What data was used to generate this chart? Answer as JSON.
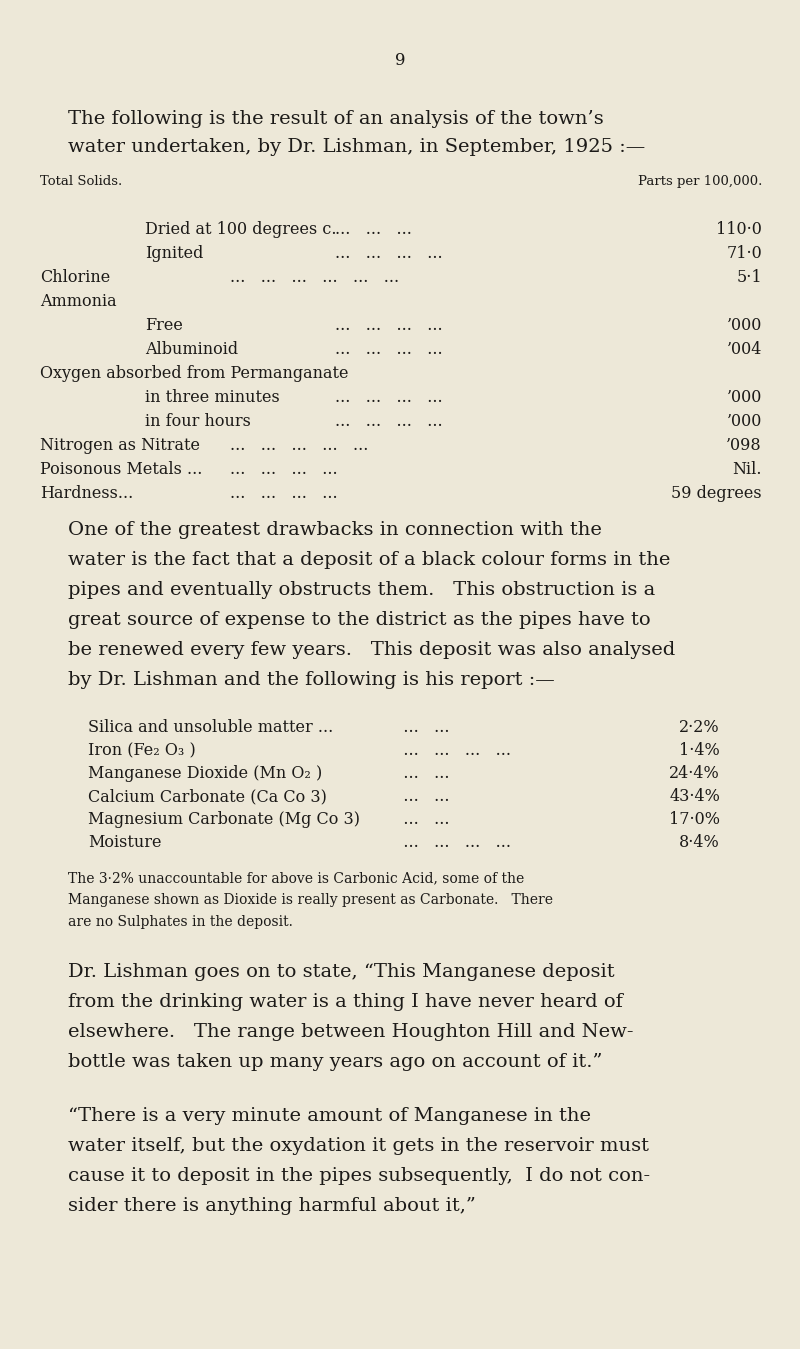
{
  "bg_color": "#EDE8D8",
  "text_color": "#1c1a18",
  "page_number": "9",
  "intro_line1": "The following is the result of an analysis of the town’s",
  "intro_line2": "water undertaken, by Dr. Lishman, in September, 1925 :—",
  "table_header_left": "Total Solids.",
  "table_header_right": "Parts per 100,000.",
  "table_rows": [
    {
      "indent": 1,
      "label": "Dried at 100 degrees c.",
      "dots": "...   ...   ...",
      "value": "110·0"
    },
    {
      "indent": 1,
      "label": "Ignited",
      "dots": "...   ...   ...   ...",
      "value": "71·0"
    },
    {
      "indent": 0,
      "label": "Chlorine",
      "dots": "...   ...   ...   ...   ...   ...",
      "value": "5·1"
    },
    {
      "indent": 0,
      "label": "Ammonia",
      "dots": "",
      "value": ""
    },
    {
      "indent": 1,
      "label": "Free",
      "dots": "...   ...   ...   ...",
      "value": "’000"
    },
    {
      "indent": 1,
      "label": "Albuminoid",
      "dots": "...   ...   ...   ...",
      "value": "’004"
    },
    {
      "indent": 0,
      "label": "Oxygen absorbed from Permanganate",
      "dots": "",
      "value": ""
    },
    {
      "indent": 1,
      "label": "in three minutes",
      "dots": "...   ...   ...   ...",
      "value": "’000"
    },
    {
      "indent": 1,
      "label": "in four hours",
      "dots": "...   ...   ...   ...",
      "value": "’000"
    },
    {
      "indent": 0,
      "label": "Nitrogen as Nitrate",
      "dots": "...   ...   ...   ...   ...",
      "value": "’098"
    },
    {
      "indent": 0,
      "label": "Poisonous Metals ...",
      "dots": "...   ...   ...   ...",
      "value": "Nil."
    },
    {
      "indent": 0,
      "label": "Hardness...",
      "dots": "...   ...   ...   ...",
      "value": "59 degrees"
    }
  ],
  "para1_lines": [
    "One of the greatest drawbacks in connection with the",
    "water is the fact that a deposit of a black colour forms in the",
    "pipes and eventually obstructs them.   This obstruction is a",
    "great source of expense to the district as the pipes have to",
    "be renewed every few years.   This deposit was also analysed",
    "by Dr. Lishman and the following is his report :—"
  ],
  "table2_rows": [
    {
      "label": "Silica and unsoluble matter ...",
      "dots": "   ...   ...",
      "value": "2·2%"
    },
    {
      "label": "Iron (Fe₂ O₃ )",
      "dots": "   ...   ...   ...   ...",
      "value": "1·4%"
    },
    {
      "label": "Manganese Dioxide (Mn O₂ )",
      "dots": "   ...   ...",
      "value": "24·4%"
    },
    {
      "label": "Calcium Carbonate (Ca Co 3)",
      "dots": "   ...   ...",
      "value": "43·4%"
    },
    {
      "label": "Magnesium Carbonate (Mg Co 3)",
      "dots": "   ...   ...",
      "value": "17·0%"
    },
    {
      "label": "Moisture",
      "dots": "   ...   ...   ...   ...",
      "value": "8·4%"
    }
  ],
  "note_lines": [
    "The 3·2% unaccountable for above is Carbonic Acid, some of the",
    "Manganese shown as Dioxide is really present as Carbonate.   There",
    "are no Sulphates in the deposit."
  ],
  "para2_lines": [
    "Dr. Lishman goes on to state, “This Manganese deposit",
    "from the drinking water is a thing I have never heard of",
    "elsewhere.   The range between Houghton Hill and New-",
    "bottle was taken up many years ago on account of it.”"
  ],
  "para3_lines": [
    "“There is a very minute amount of Manganese in the",
    "water itself, but the oxydation it gets in the reservoir must",
    "cause it to deposit in the pipes subsequently,  I do not con-",
    "sider there is anything harmful about it,”"
  ]
}
